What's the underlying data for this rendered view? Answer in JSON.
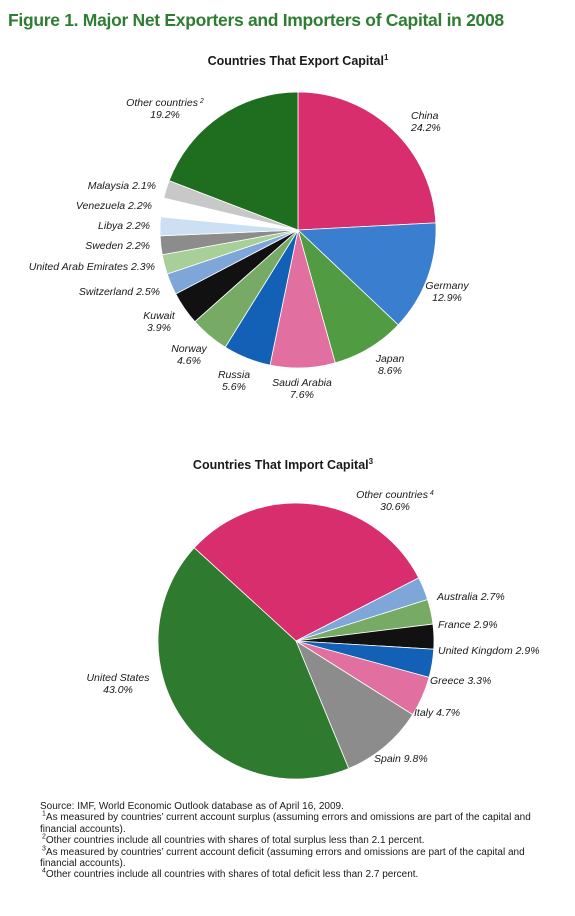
{
  "figure_title": "Figure 1. Major Net Exporters and Importers of Capital in 2008",
  "colors": {
    "title": "#2e7d32",
    "dark_green": "#1f6d1f",
    "magenta": "#d92e6e",
    "blue": "#3a7fcf",
    "medium_green": "#519b42",
    "pink": "#e16fa0",
    "navy_blue": "#1361b6",
    "light_green": "#76aa65",
    "black": "#111111",
    "light_blue": "#7ea6d8",
    "pale_green": "#a9cf98",
    "gray": "#8c8c8c",
    "pale_blue": "#cddff2",
    "white": "#ffffff",
    "light_gray": "#c8c8c8"
  },
  "chart_data": [
    {
      "type": "pie",
      "title": "Countries That Export Capital",
      "title_footnote": "1",
      "unit": "percent",
      "slices": [
        {
          "label": "China",
          "value": 24.2,
          "value_text": "24.2%",
          "color": "#d92e6e"
        },
        {
          "label": "Germany",
          "value": 12.9,
          "value_text": "12.9%",
          "color": "#3a7fcf"
        },
        {
          "label": "Japan",
          "value": 8.6,
          "value_text": "8.6%",
          "color": "#519b42"
        },
        {
          "label": "Saudi Arabia",
          "value": 7.6,
          "value_text": "7.6%",
          "color": "#e16fa0"
        },
        {
          "label": "Russia",
          "value": 5.6,
          "value_text": "5.6%",
          "color": "#1361b6"
        },
        {
          "label": "Norway",
          "value": 4.6,
          "value_text": "4.6%",
          "color": "#76aa65"
        },
        {
          "label": "Kuwait",
          "value": 3.9,
          "value_text": "3.9%",
          "color": "#111111"
        },
        {
          "label": "Switzerland",
          "value": 2.5,
          "value_text": "2.5%",
          "color": "#7ea6d8"
        },
        {
          "label": "United Arab Emirates",
          "value": 2.3,
          "value_text": "2.3%",
          "color": "#a9cf98"
        },
        {
          "label": "Sweden",
          "value": 2.2,
          "value_text": "2.2%",
          "color": "#8c8c8c"
        },
        {
          "label": "Libya",
          "value": 2.2,
          "value_text": "2.2%",
          "color": "#cddff2"
        },
        {
          "label": "Venezuela",
          "value": 2.2,
          "value_text": "2.2%",
          "color": "#ffffff"
        },
        {
          "label": "Malaysia",
          "value": 2.1,
          "value_text": "2.1%",
          "color": "#c8c8c8"
        },
        {
          "label": "Other countries",
          "label_footnote": "2",
          "value": 19.2,
          "value_text": "19.2%",
          "color": "#1f6d1f"
        }
      ]
    },
    {
      "type": "pie",
      "title": "Countries That Import Capital",
      "title_footnote": "3",
      "unit": "percent",
      "slices": [
        {
          "label": "Other countries",
          "label_footnote": "4",
          "value": 30.6,
          "value_text": "30.6%",
          "color": "#d92e6e"
        },
        {
          "label": "Australia",
          "value": 2.7,
          "value_text": "2.7%",
          "color": "#7ea6d8"
        },
        {
          "label": "France",
          "value": 2.9,
          "value_text": "2.9%",
          "color": "#76aa65"
        },
        {
          "label": "United Kingdom",
          "value": 2.9,
          "value_text": "2.9%",
          "color": "#111111"
        },
        {
          "label": "Greece",
          "value": 3.3,
          "value_text": "3.3%",
          "color": "#1361b6"
        },
        {
          "label": "Italy",
          "value": 4.7,
          "value_text": "4.7%",
          "color": "#e16fa0"
        },
        {
          "label": "Spain",
          "value": 9.8,
          "value_text": "9.8%",
          "color": "#8c8c8c"
        },
        {
          "label": "United States",
          "value": 43.0,
          "value_text": "43.0%",
          "color": "#2e7a2e"
        }
      ]
    }
  ],
  "notes": {
    "source": "Source: IMF, World Economic Outlook database as of April 16, 2009.",
    "items": [
      {
        "mark": "1",
        "text": "As measured by countries’ current account surplus (assuming errors and omissions are part of the capital and financial accounts)."
      },
      {
        "mark": "2",
        "text": "Other countries include all countries with shares of total surplus less than 2.1 percent."
      },
      {
        "mark": "3",
        "text": "As measured by countries’ current account deficit (assuming errors and omissions are part of the capital and financial accounts)."
      },
      {
        "mark": "4",
        "text": "Other countries include all countries with shares of total deficit less than 2.7 percent."
      }
    ]
  }
}
